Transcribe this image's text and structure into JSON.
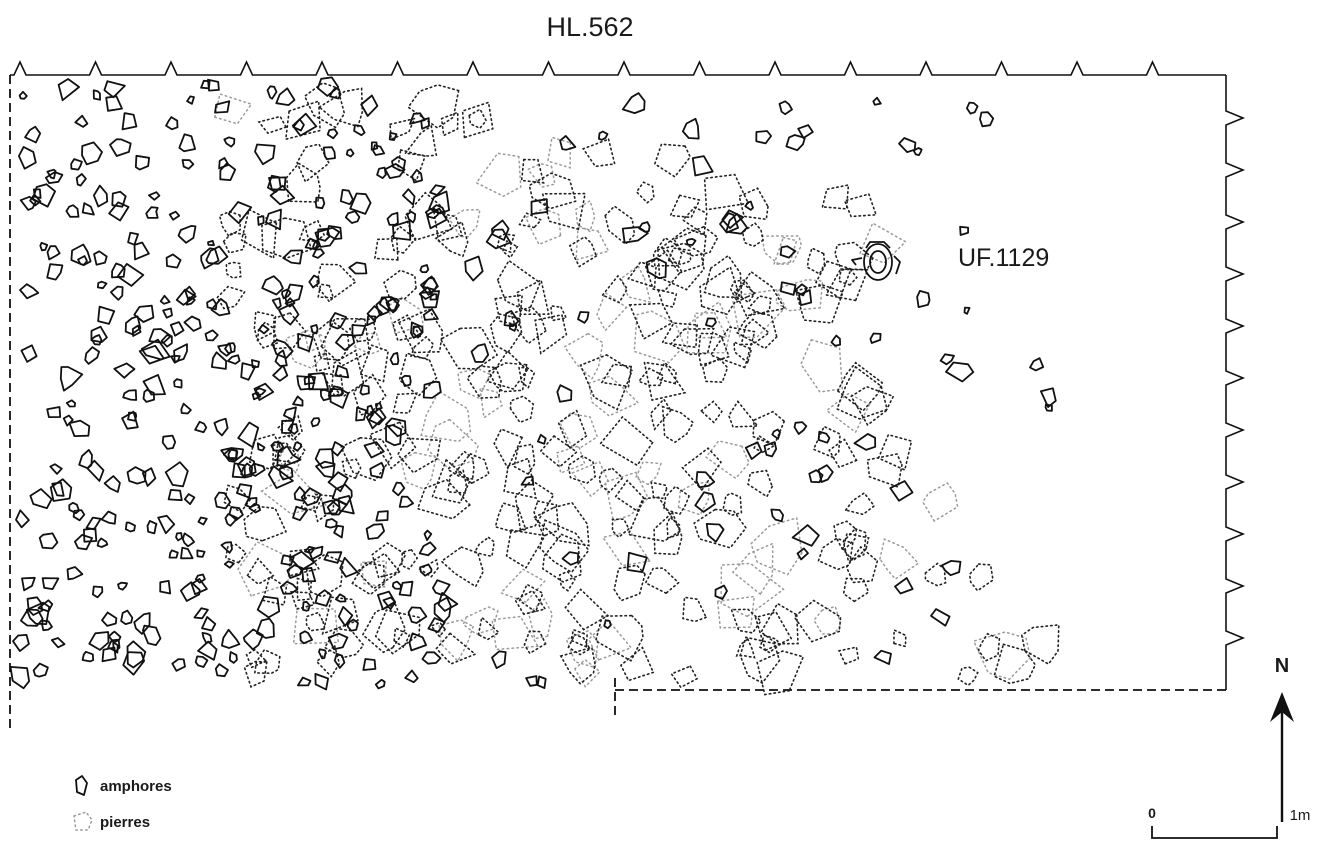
{
  "title": "HL.562",
  "unit_label": "UF.1129",
  "legend": {
    "amphorae_label": "amphores",
    "stones_label": "pierres"
  },
  "north_label": "N",
  "scale": {
    "start_label": "0",
    "end_label": "1m"
  }
}
